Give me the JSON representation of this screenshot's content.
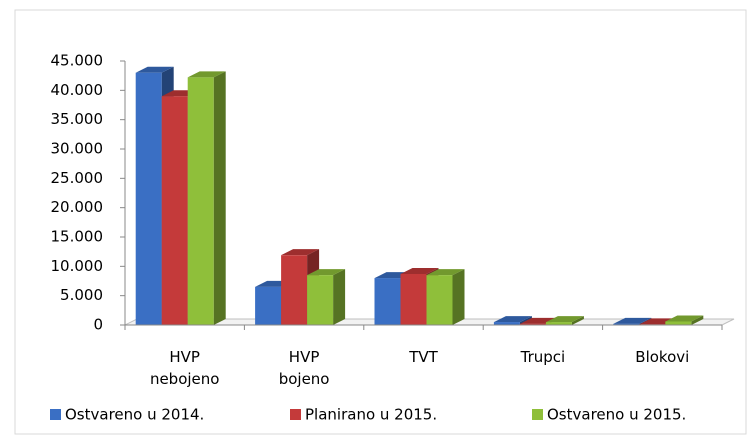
{
  "chart_data": {
    "type": "bar3d",
    "categories": [
      "HVP nebojeno",
      "HVP bojeno",
      "TVT",
      "Trupci",
      "Blokovi"
    ],
    "series": [
      {
        "name": "Ostvareno u 2014.",
        "color": "#3a6fc4",
        "values": [
          43000,
          6500,
          8000,
          500,
          200
        ]
      },
      {
        "name": "Planirano u 2015.",
        "color": "#c43a3a",
        "values": [
          39000,
          11900,
          8700,
          200,
          100
        ]
      },
      {
        "name": "Ostvareno u 2015.",
        "color": "#8fbf3a",
        "values": [
          42200,
          8500,
          8500,
          500,
          600
        ]
      }
    ],
    "ylim": [
      0,
      45000
    ],
    "yticks": [
      0,
      {
        "value": 5000,
        "label": "5.000"
      },
      {
        "value": 10000,
        "label": "10.000"
      },
      {
        "value": 15000,
        "label": "15.000"
      },
      {
        "value": 20000,
        "label": "20.000"
      },
      {
        "value": 25000,
        "label": "25.000"
      },
      {
        "value": 30000,
        "label": "30.000"
      },
      {
        "value": 35000,
        "label": "35.000"
      },
      {
        "value": 40000,
        "label": "40.000"
      },
      {
        "value": 45000,
        "label": "45.000"
      }
    ],
    "legend": "bottom"
  }
}
